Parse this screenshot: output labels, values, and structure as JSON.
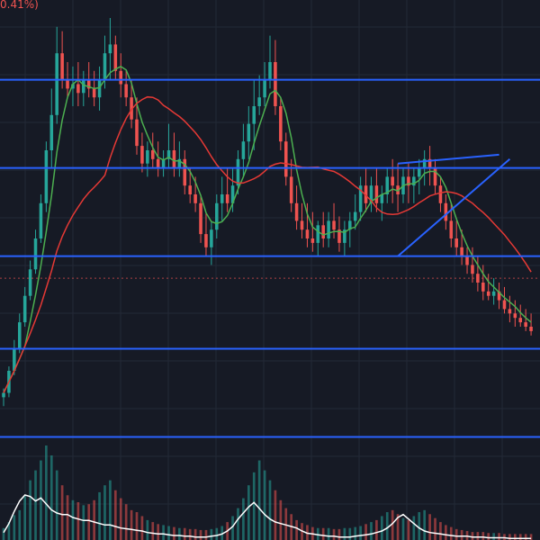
{
  "header": {
    "change_text": "0.41%)"
  },
  "colors": {
    "background": "#161a25",
    "grid": "#232936",
    "up": "#26a69a",
    "down": "#ef5350",
    "ma_fast": "#4caf50",
    "ma_slow": "#e53935",
    "drawn_lines": "#2962ff",
    "volume_line": "#ffffff"
  },
  "chart_data": {
    "type": "candlestick",
    "price_axis": {
      "ylim": [
        0,
        100
      ],
      "scale": "linear",
      "grid": true,
      "labels_visible": false
    },
    "time_axis": {
      "xlim": [
        0,
        100
      ],
      "labels_visible": false
    },
    "candles": [
      [
        0,
        14,
        16,
        12,
        15
      ],
      [
        1,
        15,
        21,
        14,
        20
      ],
      [
        2,
        20,
        27,
        19,
        25
      ],
      [
        3,
        25,
        33,
        24,
        31
      ],
      [
        4,
        31,
        39,
        30,
        37
      ],
      [
        5,
        37,
        45,
        36,
        43
      ],
      [
        6,
        43,
        52,
        42,
        50
      ],
      [
        7,
        50,
        60,
        49,
        58
      ],
      [
        8,
        58,
        72,
        56,
        70
      ],
      [
        9,
        70,
        84,
        66,
        78
      ],
      [
        10,
        78,
        98,
        76,
        92
      ],
      [
        11,
        92,
        97,
        84,
        86
      ],
      [
        12,
        86,
        90,
        82,
        84
      ],
      [
        13,
        84,
        89,
        80,
        85
      ],
      [
        14,
        85,
        90,
        80,
        83
      ],
      [
        15,
        83,
        88,
        80,
        86
      ],
      [
        16,
        86,
        90,
        82,
        84
      ],
      [
        17,
        84,
        88,
        80,
        82
      ],
      [
        18,
        82,
        89,
        79,
        86
      ],
      [
        19,
        86,
        96,
        84,
        92
      ],
      [
        20,
        92,
        100,
        86,
        94
      ],
      [
        21,
        94,
        96,
        86,
        88
      ],
      [
        22,
        88,
        92,
        82,
        85
      ],
      [
        23,
        85,
        88,
        80,
        82
      ],
      [
        24,
        82,
        86,
        75,
        77
      ],
      [
        25,
        77,
        82,
        69,
        71
      ],
      [
        26,
        71,
        74,
        65,
        67
      ],
      [
        27,
        67,
        72,
        64,
        70
      ],
      [
        28,
        70,
        74,
        66,
        68
      ],
      [
        29,
        68,
        72,
        64,
        66
      ],
      [
        30,
        66,
        70,
        64,
        68
      ],
      [
        31,
        68,
        76,
        66,
        70
      ],
      [
        32,
        70,
        74,
        64,
        66
      ],
      [
        33,
        66,
        72,
        64,
        68
      ],
      [
        34,
        68,
        70,
        60,
        62
      ],
      [
        35,
        62,
        66,
        58,
        60
      ],
      [
        36,
        60,
        64,
        56,
        58
      ],
      [
        37,
        58,
        60,
        49,
        51
      ],
      [
        38,
        51,
        56,
        46,
        48
      ],
      [
        39,
        48,
        54,
        44,
        52
      ],
      [
        40,
        52,
        60,
        50,
        58
      ],
      [
        41,
        58,
        64,
        54,
        60
      ],
      [
        42,
        60,
        66,
        56,
        58
      ],
      [
        43,
        58,
        66,
        56,
        62
      ],
      [
        44,
        62,
        70,
        60,
        68
      ],
      [
        45,
        68,
        76,
        64,
        72
      ],
      [
        46,
        72,
        80,
        68,
        76
      ],
      [
        47,
        76,
        86,
        70,
        80
      ],
      [
        48,
        80,
        87,
        78,
        82
      ],
      [
        49,
        82,
        90,
        80,
        86
      ],
      [
        50,
        86,
        96,
        84,
        90
      ],
      [
        51,
        90,
        95,
        78,
        80
      ],
      [
        52,
        80,
        82,
        70,
        72
      ],
      [
        53,
        72,
        74,
        62,
        64
      ],
      [
        54,
        64,
        68,
        56,
        58
      ],
      [
        55,
        58,
        62,
        52,
        54
      ],
      [
        56,
        54,
        58,
        50,
        52
      ],
      [
        57,
        52,
        58,
        48,
        50
      ],
      [
        58,
        50,
        56,
        47,
        49
      ],
      [
        59,
        49,
        54,
        46,
        53
      ],
      [
        60,
        53,
        56,
        48,
        50
      ],
      [
        61,
        50,
        56,
        48,
        54
      ],
      [
        62,
        54,
        58,
        50,
        52
      ],
      [
        63,
        52,
        55,
        47,
        49
      ],
      [
        64,
        49,
        54,
        46,
        52
      ],
      [
        65,
        52,
        56,
        48,
        54
      ],
      [
        66,
        54,
        60,
        52,
        56
      ],
      [
        67,
        56,
        64,
        54,
        62
      ],
      [
        68,
        62,
        66,
        56,
        58
      ],
      [
        69,
        58,
        64,
        56,
        62
      ],
      [
        70,
        62,
        66,
        56,
        58
      ],
      [
        71,
        58,
        62,
        54,
        60
      ],
      [
        72,
        60,
        66,
        58,
        64
      ],
      [
        73,
        64,
        68,
        58,
        62
      ],
      [
        74,
        62,
        67,
        56,
        60
      ],
      [
        75,
        60,
        66,
        58,
        64
      ],
      [
        76,
        64,
        67,
        58,
        62
      ],
      [
        77,
        62,
        66,
        58,
        64
      ],
      [
        78,
        64,
        68,
        60,
        66
      ],
      [
        79,
        66,
        70,
        62,
        68
      ],
      [
        80,
        68,
        71,
        62,
        66
      ],
      [
        81,
        66,
        68,
        60,
        62
      ],
      [
        82,
        62,
        64,
        56,
        58
      ],
      [
        83,
        58,
        60,
        52,
        54
      ],
      [
        84,
        54,
        58,
        48,
        50
      ],
      [
        85,
        50,
        54,
        46,
        48
      ],
      [
        86,
        48,
        52,
        44,
        46
      ],
      [
        87,
        46,
        48,
        42,
        44
      ],
      [
        88,
        44,
        48,
        40,
        42
      ],
      [
        89,
        42,
        46,
        38,
        40
      ],
      [
        90,
        40,
        44,
        36,
        38
      ],
      [
        91,
        38,
        42,
        36,
        37
      ],
      [
        92,
        37,
        41,
        35,
        38
      ],
      [
        93,
        38,
        40,
        34,
        36
      ],
      [
        94,
        36,
        39,
        33,
        34
      ],
      [
        95,
        34,
        37,
        31,
        33
      ],
      [
        96,
        33,
        36,
        30,
        32
      ],
      [
        97,
        32,
        35,
        30,
        31
      ],
      [
        98,
        31,
        34,
        29,
        30
      ],
      [
        99,
        30,
        33,
        28,
        29
      ]
    ],
    "moving_averages": [
      {
        "period": 5,
        "color": "#4caf50"
      },
      {
        "period": 20,
        "color": "#e53935"
      }
    ],
    "horizontal_lines": [
      86,
      66,
      46,
      25,
      5
    ],
    "current_price_line": 41,
    "trendlines": [
      {
        "from": [
          74,
          67
        ],
        "to": [
          93,
          69
        ]
      },
      {
        "from": [
          74,
          46
        ],
        "to": [
          95,
          68
        ]
      }
    ],
    "volume": [
      12,
      18,
      25,
      30,
      45,
      60,
      70,
      80,
      95,
      85,
      70,
      55,
      45,
      40,
      38,
      35,
      36,
      40,
      48,
      55,
      60,
      50,
      42,
      36,
      30,
      28,
      24,
      20,
      18,
      16,
      15,
      14,
      13,
      12,
      12,
      11,
      11,
      10,
      10,
      11,
      12,
      14,
      18,
      24,
      32,
      42,
      55,
      68,
      80,
      70,
      60,
      50,
      40,
      32,
      26,
      20,
      17,
      15,
      13,
      12,
      12,
      12,
      11,
      11,
      12,
      12,
      13,
      14,
      16,
      18,
      20,
      24,
      28,
      30,
      26,
      22,
      20,
      24,
      28,
      30,
      26,
      22,
      18,
      15,
      13,
      11,
      10,
      9,
      8,
      8,
      8,
      7,
      7,
      7,
      6,
      6,
      6,
      6,
      6,
      6
    ],
    "volume_line": [
      10,
      22,
      38,
      52,
      60,
      58,
      52,
      56,
      48,
      40,
      36,
      34,
      34,
      30,
      28,
      26,
      26,
      24,
      22,
      20,
      20,
      18,
      16,
      15,
      14,
      13,
      12,
      10,
      9,
      8,
      8,
      7,
      6,
      6,
      5,
      5,
      4,
      4,
      4,
      5,
      6,
      8,
      12,
      18,
      28,
      36,
      44,
      50,
      42,
      34,
      28,
      24,
      22,
      20,
      18,
      16,
      12,
      9,
      8,
      7,
      6,
      5,
      5,
      4,
      4,
      4,
      5,
      6,
      7,
      8,
      10,
      12,
      16,
      22,
      30,
      34,
      28,
      22,
      16,
      12,
      10,
      9,
      8,
      7,
      6,
      5,
      5,
      5,
      4,
      4,
      4,
      3,
      3,
      3,
      3,
      2,
      2,
      2,
      2,
      2
    ]
  }
}
